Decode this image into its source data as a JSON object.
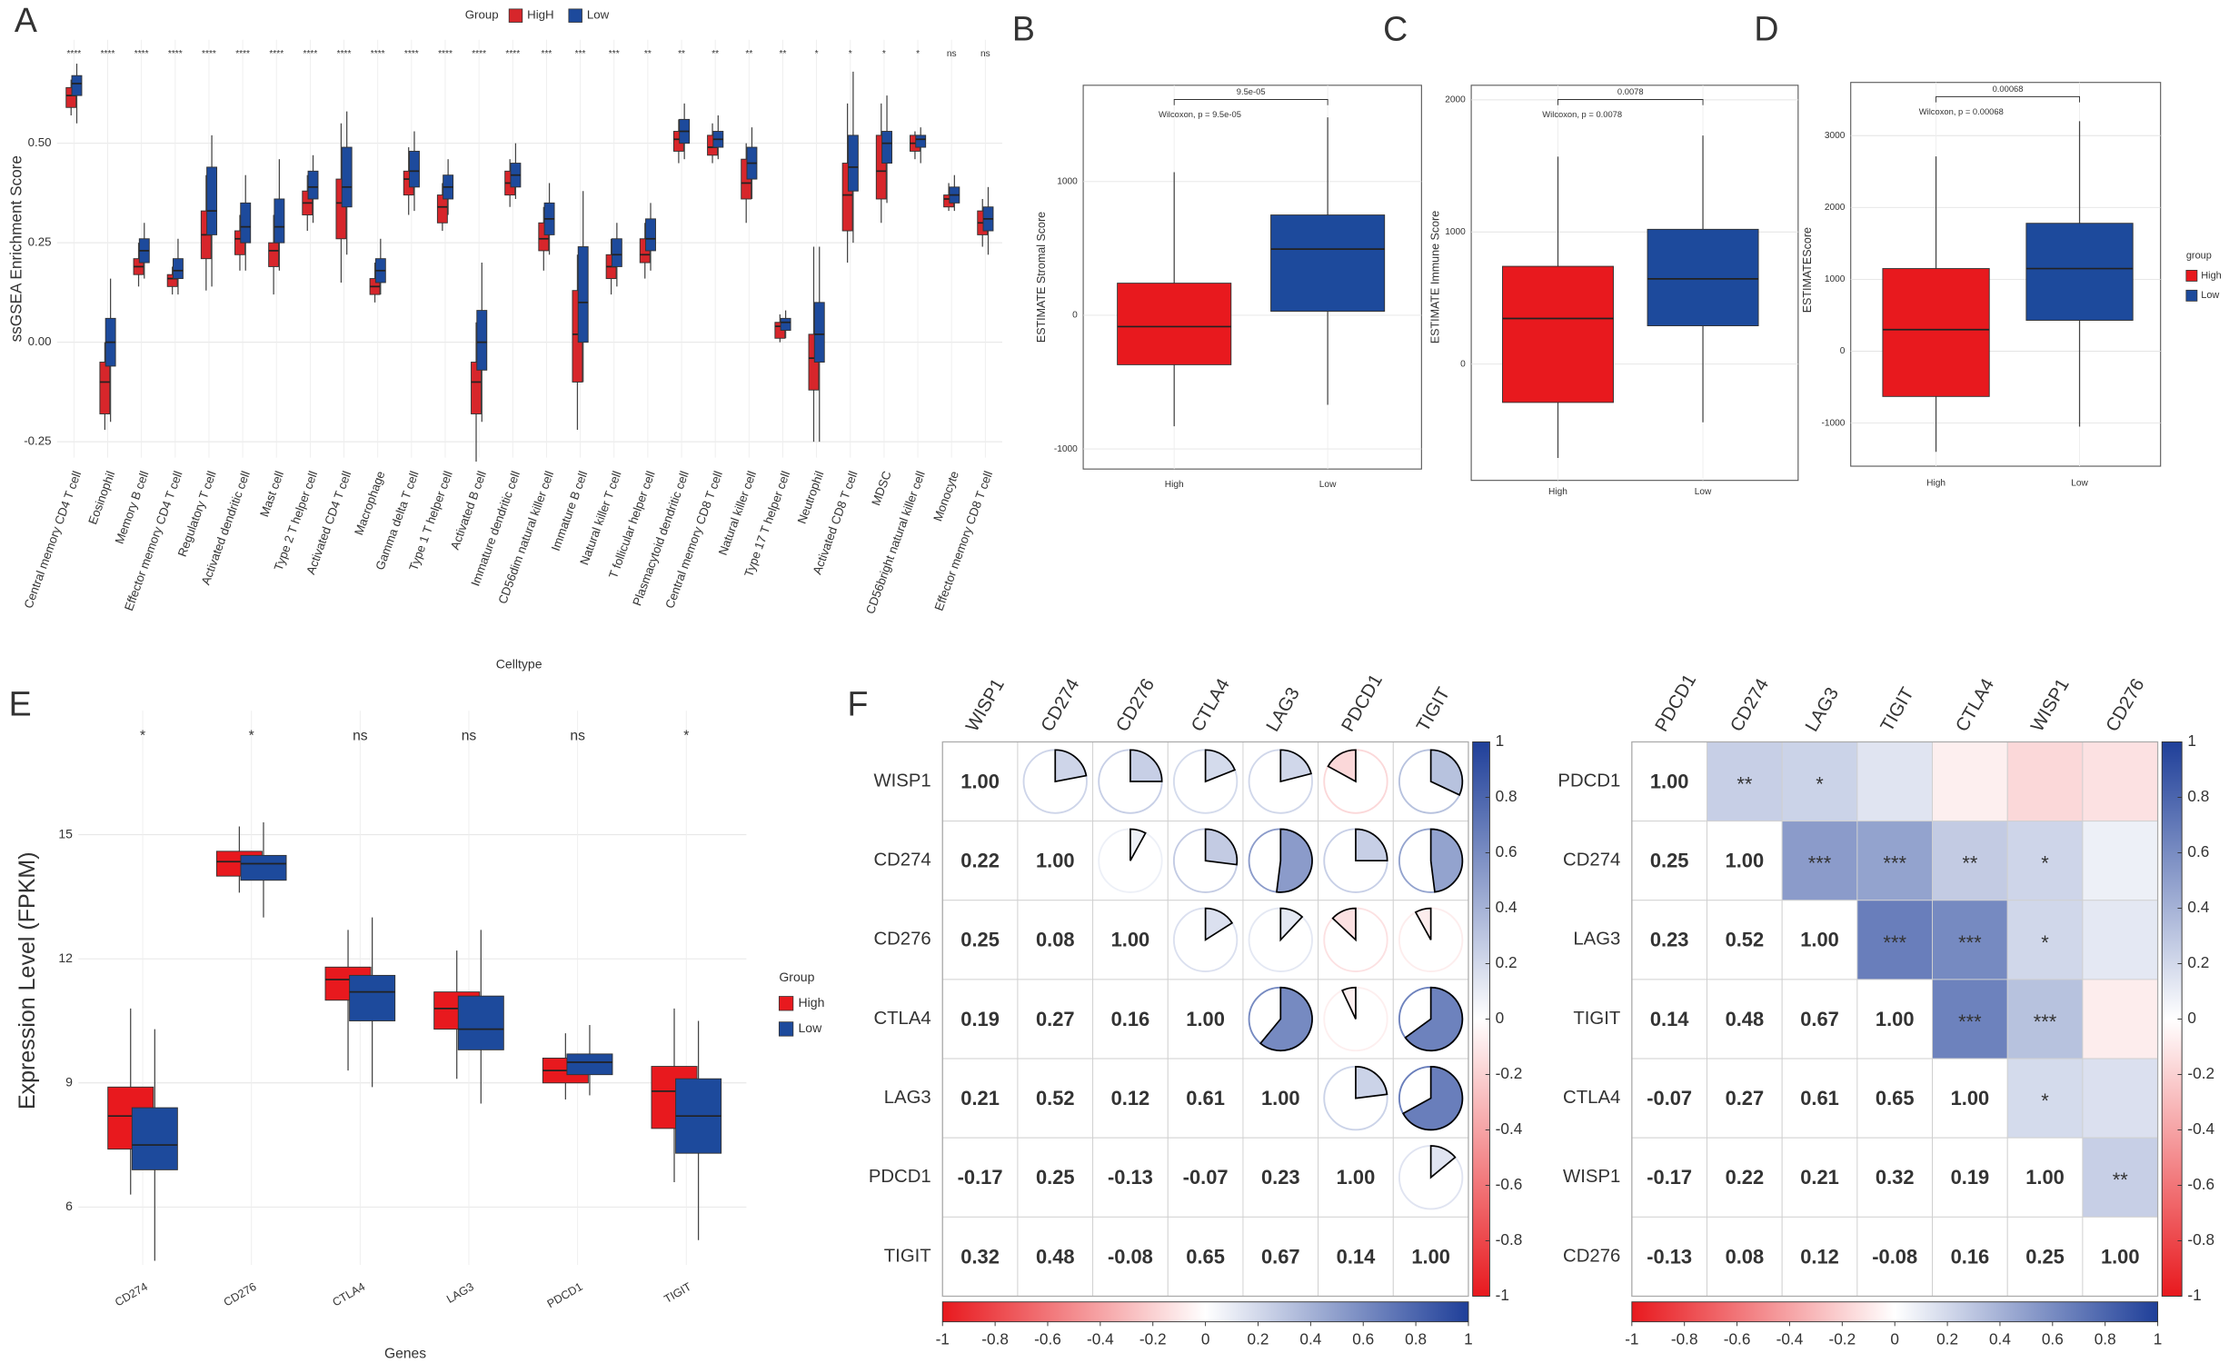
{
  "chart_data": [
    {
      "type": "box",
      "panel": "A",
      "ylabel": "ssGSEA Enrichment Score",
      "xlabel": "Celltype",
      "legend_title": "Group",
      "categories": [
        "Central memory CD4 T cell",
        "Eosinophil",
        "Memory B cell",
        "Effector memory CD4 T cell",
        "Regulatory T cell",
        "Activated dendritic cell",
        "Mast cell",
        "Type 2 T helper cell",
        "Activated CD4 T cell",
        "Macrophage",
        "Gamma delta T cell",
        "Type 1 T helper cell",
        "Activated B cell",
        "Immature dendritic cell",
        "CD56dim natural killer cell",
        "Immature B cell",
        "Natural killer T cell",
        "T follicular helper cell",
        "Plasmacytoid dendritic cell",
        "Central memory CD8 T cell",
        "Natural killer cell",
        "Type 17 T helper cell",
        "Neutrophil",
        "Activated CD8 T cell",
        "MDSC",
        "CD56bright natural killer cell",
        "Monocyte",
        "Effector memory CD8 T cell"
      ],
      "significance": [
        "****",
        "****",
        "****",
        "****",
        "****",
        "****",
        "****",
        "****",
        "****",
        "****",
        "****",
        "****",
        "****",
        "****",
        "***",
        "***",
        "***",
        "**",
        "**",
        "**",
        "**",
        "**",
        "*",
        "*",
        "*",
        "*",
        "ns",
        "ns"
      ],
      "ylim": [
        -0.29,
        0.76
      ],
      "yticks": [
        -0.25,
        {
          "value": 0,
          "label": "0.00"
        },
        0.25,
        {
          "value": 0.5,
          "label": "0.50"
        }
      ],
      "grid": true,
      "series": [
        {
          "name": "HigH",
          "color": "#d7262b",
          "low": [
            0.57,
            -0.22,
            0.14,
            0.12,
            0.13,
            0.18,
            0.12,
            0.28,
            0.15,
            0.1,
            0.32,
            0.28,
            -0.3,
            0.34,
            0.18,
            -0.22,
            0.12,
            0.16,
            0.45,
            0.45,
            0.3,
            0.0,
            -0.25,
            0.2,
            0.3,
            0.46,
            0.33,
            0.24
          ],
          "q1": [
            0.59,
            -0.18,
            0.17,
            0.14,
            0.21,
            0.22,
            0.19,
            0.32,
            0.26,
            0.12,
            0.37,
            0.3,
            -0.18,
            0.37,
            0.23,
            -0.1,
            0.16,
            0.2,
            0.48,
            0.47,
            0.36,
            0.01,
            -0.12,
            0.28,
            0.36,
            0.48,
            0.34,
            0.27
          ],
          "median": [
            0.62,
            -0.1,
            0.19,
            0.16,
            0.27,
            0.26,
            0.23,
            0.35,
            0.35,
            0.14,
            0.41,
            0.34,
            -0.1,
            0.4,
            0.26,
            0.02,
            0.19,
            0.22,
            0.51,
            0.49,
            0.4,
            0.04,
            -0.04,
            0.37,
            0.43,
            0.5,
            0.36,
            0.3
          ],
          "q3": [
            0.64,
            -0.05,
            0.21,
            0.17,
            0.33,
            0.28,
            0.25,
            0.38,
            0.41,
            0.16,
            0.43,
            0.37,
            -0.05,
            0.43,
            0.3,
            0.13,
            0.22,
            0.26,
            0.53,
            0.52,
            0.46,
            0.05,
            0.02,
            0.45,
            0.52,
            0.52,
            0.37,
            0.33
          ],
          "high": [
            0.66,
            0.0,
            0.25,
            0.19,
            0.42,
            0.32,
            0.32,
            0.42,
            0.55,
            0.2,
            0.49,
            0.4,
            0.05,
            0.46,
            0.34,
            0.22,
            0.26,
            0.3,
            0.56,
            0.55,
            0.5,
            0.07,
            0.24,
            0.6,
            0.6,
            0.53,
            0.4,
            0.36
          ]
        },
        {
          "name": "Low",
          "color": "#1d4a9c",
          "low": [
            0.55,
            -0.2,
            0.16,
            0.12,
            0.14,
            0.18,
            0.18,
            0.3,
            0.22,
            0.12,
            0.33,
            0.32,
            -0.2,
            0.36,
            0.22,
            -0.1,
            0.14,
            0.18,
            0.46,
            0.46,
            0.36,
            0.01,
            -0.25,
            0.25,
            0.35,
            0.45,
            0.33,
            0.22
          ],
          "q1": [
            0.62,
            -0.06,
            0.2,
            0.16,
            0.27,
            0.25,
            0.25,
            0.36,
            0.34,
            0.15,
            0.39,
            0.36,
            -0.07,
            0.39,
            0.27,
            0.0,
            0.19,
            0.23,
            0.5,
            0.49,
            0.41,
            0.03,
            -0.05,
            0.38,
            0.45,
            0.49,
            0.35,
            0.28
          ],
          "median": [
            0.65,
            0.0,
            0.23,
            0.18,
            0.33,
            0.29,
            0.29,
            0.39,
            0.39,
            0.18,
            0.43,
            0.39,
            0.0,
            0.42,
            0.31,
            0.1,
            0.22,
            0.26,
            0.53,
            0.51,
            0.45,
            0.05,
            0.02,
            0.44,
            0.5,
            0.51,
            0.37,
            0.31
          ],
          "q3": [
            0.67,
            0.06,
            0.26,
            0.21,
            0.44,
            0.35,
            0.36,
            0.43,
            0.49,
            0.21,
            0.48,
            0.42,
            0.08,
            0.45,
            0.35,
            0.24,
            0.26,
            0.31,
            0.56,
            0.53,
            0.49,
            0.06,
            0.1,
            0.52,
            0.53,
            0.52,
            0.39,
            0.34
          ],
          "high": [
            0.7,
            0.16,
            0.3,
            0.26,
            0.52,
            0.42,
            0.46,
            0.47,
            0.58,
            0.26,
            0.53,
            0.46,
            0.2,
            0.5,
            0.4,
            0.38,
            0.3,
            0.35,
            0.6,
            0.57,
            0.54,
            0.08,
            0.24,
            0.68,
            0.62,
            0.54,
            0.42,
            0.39
          ]
        }
      ]
    },
    {
      "type": "box",
      "panel": "B",
      "ylabel": "ESTIMATE Stromal Score",
      "categories": [
        "High",
        "Low"
      ],
      "colors": [
        "#e8191e",
        "#1d4a9c"
      ],
      "ylim": [
        -1150,
        1720
      ],
      "yticks": [
        -1000,
        0,
        1000
      ],
      "grid": true,
      "low": [
        -830,
        -670
      ],
      "q1": [
        -370,
        30
      ],
      "median": [
        -85,
        495
      ],
      "q3": [
        240,
        750
      ],
      "high": [
        1070,
        1480
      ],
      "p_label": "9.5e-05",
      "test_label": "Wilcoxon, p = 9.5e-05"
    },
    {
      "type": "box",
      "panel": "C",
      "ylabel": "ESTIMATE Immune Score",
      "categories": [
        "High",
        "Low"
      ],
      "colors": [
        "#e8191e",
        "#1d4a9c"
      ],
      "ylim": [
        -880,
        2110
      ],
      "yticks": [
        0,
        1000,
        2000
      ],
      "grid": true,
      "low": [
        -710,
        -440
      ],
      "q1": [
        -290,
        290
      ],
      "median": [
        345,
        645
      ],
      "q3": [
        740,
        1020
      ],
      "high": [
        1570,
        1730
      ],
      "p_label": "0.0078",
      "test_label": "Wilcoxon, p = 0.0078"
    },
    {
      "type": "box",
      "panel": "D",
      "ylabel": "ESTIMATEScore",
      "legend_title": "group",
      "categories": [
        "High",
        "Low"
      ],
      "colors": [
        "#e8191e",
        "#1d4a9c"
      ],
      "ylim": [
        -1600,
        3740
      ],
      "yticks": [
        -1000,
        0,
        1000,
        2000,
        3000
      ],
      "grid": true,
      "low": [
        -1400,
        -1050
      ],
      "q1": [
        -630,
        430
      ],
      "median": [
        300,
        1150
      ],
      "q3": [
        1150,
        1780
      ],
      "high": [
        2710,
        3200
      ],
      "p_label": "0.00068",
      "test_label": "Wilcoxon, p = 0.00068"
    },
    {
      "type": "box",
      "panel": "E",
      "ylabel": "Expression Level (FPKM)",
      "xlabel": "Genes",
      "legend_title": "Group",
      "categories": [
        "CD274",
        "CD276",
        "CTLA4",
        "LAG3",
        "PDCD1",
        "TIGIT"
      ],
      "significance": [
        "*",
        "*",
        "ns",
        "ns",
        "ns",
        "*"
      ],
      "ylim": [
        4.6,
        18.0
      ],
      "yticks": [
        6,
        9,
        12,
        15
      ],
      "grid": true,
      "series": [
        {
          "name": "High",
          "color": "#e8191e",
          "low": [
            6.3,
            13.6,
            9.3,
            9.1,
            8.6,
            6.6
          ],
          "q1": [
            7.4,
            14.0,
            11.0,
            10.3,
            9.0,
            7.9
          ],
          "median": [
            8.2,
            14.35,
            11.5,
            10.8,
            9.3,
            8.8
          ],
          "q3": [
            8.9,
            14.6,
            11.8,
            11.2,
            9.6,
            9.4
          ],
          "high": [
            10.8,
            15.2,
            12.7,
            12.2,
            10.2,
            10.8
          ]
        },
        {
          "name": "Low",
          "color": "#1d4a9c",
          "low": [
            4.7,
            13.0,
            8.9,
            8.5,
            8.7,
            5.2
          ],
          "q1": [
            6.9,
            13.9,
            10.5,
            9.8,
            9.2,
            7.3
          ],
          "median": [
            7.5,
            14.3,
            11.2,
            10.3,
            9.5,
            8.2
          ],
          "q3": [
            8.4,
            14.5,
            11.6,
            11.1,
            9.7,
            9.1
          ],
          "high": [
            10.3,
            15.3,
            13.0,
            12.7,
            10.4,
            10.5
          ]
        }
      ]
    },
    {
      "type": "corrplot",
      "panel": "F",
      "method": "pie",
      "labels": [
        "WISP1",
        "CD274",
        "CD276",
        "CTLA4",
        "LAG3",
        "PDCD1",
        "TIGIT"
      ],
      "values": [
        [
          1
        ],
        [
          0.22,
          1
        ],
        [
          0.25,
          0.08,
          1
        ],
        [
          0.19,
          0.27,
          0.16,
          1
        ],
        [
          0.21,
          0.52,
          0.12,
          0.61,
          1
        ],
        [
          -0.17,
          0.25,
          -0.13,
          -0.07,
          0.23,
          1
        ],
        [
          0.32,
          0.48,
          -0.08,
          0.65,
          0.67,
          0.14,
          1
        ]
      ],
      "value_labels": [
        [
          "1.00"
        ],
        [
          "0.22",
          "1.00"
        ],
        [
          "0.25",
          "0.08",
          "1.00"
        ],
        [
          "0.19",
          "0.27",
          "0.16",
          "1.00"
        ],
        [
          "0.21",
          "0.52",
          "0.12",
          "0.61",
          "1.00"
        ],
        [
          "-0.17",
          "0.25",
          "-0.13",
          "-0.07",
          "0.23",
          "1.00"
        ],
        [
          "0.32",
          "0.48",
          "-0.08",
          "0.65",
          "0.67",
          "0.14",
          "1.00"
        ]
      ],
      "clim": [
        -1,
        1
      ],
      "colorbar_ticks": [
        1,
        0.8,
        0.6,
        0.4,
        0.2,
        0,
        -0.2,
        -0.4,
        -0.6,
        -0.8,
        -1
      ],
      "colors": [
        "#e8191e",
        "#ffffff",
        "#1f3f99"
      ]
    },
    {
      "type": "corrplot",
      "method": "heatmap",
      "labels": [
        "PDCD1",
        "CD274",
        "LAG3",
        "TIGIT",
        "CTLA4",
        "WISP1",
        "CD276"
      ],
      "values": [
        [
          1
        ],
        [
          0.25,
          1
        ],
        [
          0.23,
          0.52,
          1
        ],
        [
          0.14,
          0.48,
          0.67,
          1
        ],
        [
          -0.07,
          0.27,
          0.61,
          0.65,
          1
        ],
        [
          -0.17,
          0.22,
          0.21,
          0.32,
          0.19,
          1
        ],
        [
          -0.13,
          0.08,
          0.12,
          -0.08,
          0.16,
          0.25,
          1
        ]
      ],
      "value_labels": [
        [
          "1.00"
        ],
        [
          "0.25",
          "1.00"
        ],
        [
          "0.23",
          "0.52",
          "1.00"
        ],
        [
          "0.14",
          "0.48",
          "0.67",
          "1.00"
        ],
        [
          "-0.07",
          "0.27",
          "0.61",
          "0.65",
          "1.00"
        ],
        [
          "-0.17",
          "0.22",
          "0.21",
          "0.32",
          "0.19",
          "1.00"
        ],
        [
          "-0.13",
          "0.08",
          "0.12",
          "-0.08",
          "0.16",
          "0.25",
          "1.00"
        ]
      ],
      "stars": [
        [
          "**",
          "*",
          null,
          null,
          null,
          null
        ],
        [
          "***",
          "***",
          "**",
          "*",
          null
        ],
        [
          "***",
          "***",
          "*"
        ],
        [
          "***",
          "***"
        ],
        [
          "*"
        ],
        [
          "**"
        ],
        []
      ],
      "clim": [
        -1,
        1
      ],
      "colorbar_ticks": [
        1,
        0.8,
        0.6,
        0.4,
        0.2,
        0,
        -0.2,
        -0.4,
        -0.6,
        -0.8,
        -1
      ],
      "colors": [
        "#e8191e",
        "#ffffff",
        "#1f3f99"
      ]
    }
  ]
}
